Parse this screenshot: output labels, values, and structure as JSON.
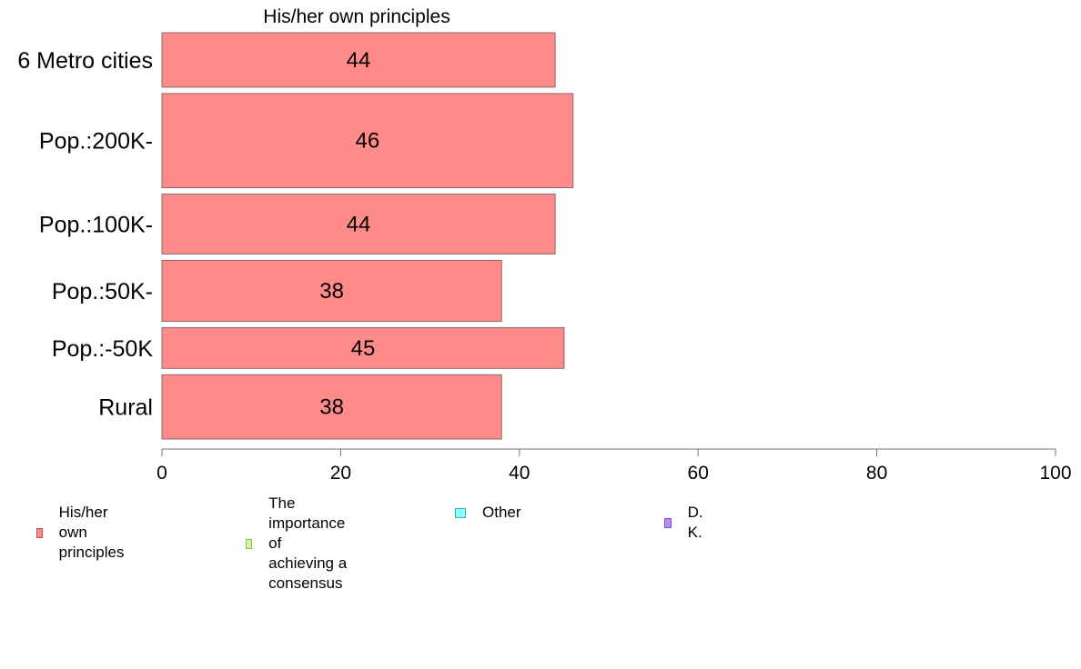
{
  "chart_data": {
    "type": "bar",
    "orientation": "horizontal",
    "title": "His/her own principles",
    "categories": [
      "6 Metro cities",
      "Pop.:200K-",
      "Pop.:100K-",
      "Pop.:50K-",
      "Pop.:-50K",
      "Rural"
    ],
    "series": [
      {
        "name": "His/her own principles",
        "values": [
          44,
          46,
          44,
          38,
          45,
          38
        ]
      }
    ],
    "data_labels": [
      "44",
      "46",
      "44",
      "38",
      "45",
      "38"
    ],
    "category_weights": [
      1.0,
      1.73,
      1.1,
      1.12,
      0.75,
      1.18
    ],
    "xlim": [
      0,
      100
    ],
    "x_ticks": [
      0,
      20,
      40,
      60,
      80,
      100
    ],
    "grid": false,
    "legend_position": "bottom-left",
    "legend": [
      {
        "label": "His/her own principles",
        "color": "#FF8A8A",
        "border": "#C05050"
      },
      {
        "label": "The importance of\nachieving a consensus",
        "color": "#CCFF99",
        "border": "#88BB55"
      },
      {
        "label": "Other",
        "color": "#88FFFF",
        "border": "#44AAAA"
      },
      {
        "label": "D. K.",
        "color": "#BB88FF",
        "border": "#7755BB"
      }
    ],
    "bar_color": "#FF8A8A",
    "bar_border": "#8A6A6A",
    "axis_color": "#777777"
  }
}
